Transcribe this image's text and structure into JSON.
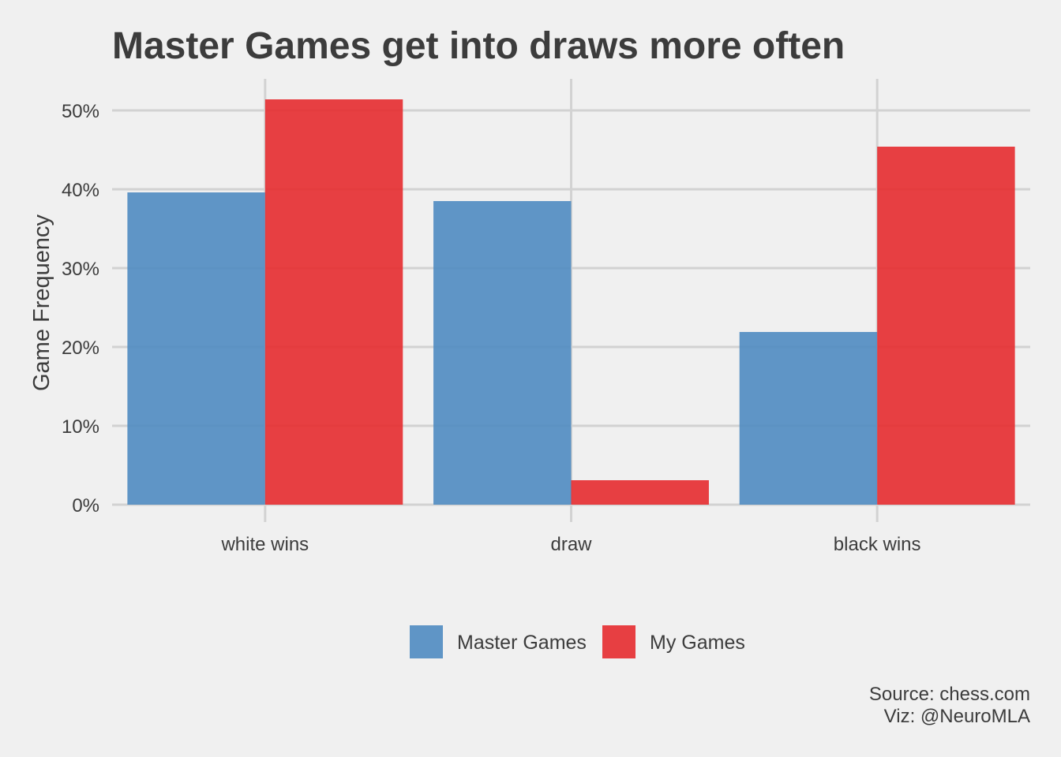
{
  "colors": {
    "background": "#f0f0f0",
    "grid": "#d2d2d2",
    "text": "#3c3c3c",
    "master": "#4f8bc1",
    "mine": "#e52b2f"
  },
  "chart_data": {
    "type": "bar",
    "title": "Master Games get into draws more often",
    "xlabel": "",
    "ylabel": "Game Frequency",
    "categories": [
      "white wins",
      "draw",
      "black wins"
    ],
    "series": [
      {
        "name": "Master Games",
        "values": [
          39.6,
          38.5,
          21.9
        ]
      },
      {
        "name": "My Games",
        "values": [
          51.4,
          3.1,
          45.4
        ]
      }
    ],
    "ylim": [
      0,
      54
    ],
    "yticks": [
      0,
      10,
      20,
      30,
      40,
      50
    ],
    "ytick_labels": [
      "0%",
      "10%",
      "20%",
      "30%",
      "40%",
      "50%"
    ],
    "grid": true,
    "legend_position": "bottom",
    "caption": [
      "Source: chess.com",
      "Viz: @NeuroMLA"
    ]
  }
}
